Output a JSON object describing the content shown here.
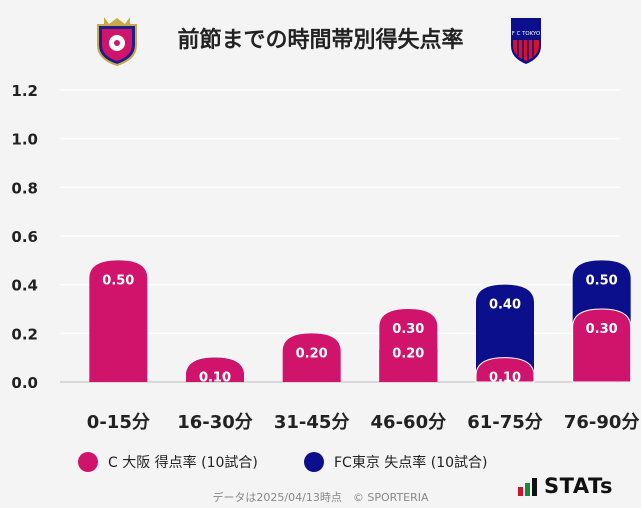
{
  "title": "前節までの時間帯別得失点率",
  "chart_data": {
    "type": "bar",
    "categories": [
      "0-15分",
      "16-30分",
      "31-45分",
      "46-60分",
      "61-75分",
      "76-90分"
    ],
    "series": [
      {
        "name": "C大阪 得点率 (10試合)",
        "values": [
          0.5,
          0.1,
          0.2,
          0.3,
          0.1,
          0.3
        ],
        "labels": [
          "0.50",
          "0.10",
          "0.20",
          "0.30",
          "0.10",
          "0.30"
        ],
        "color": "#d1146b"
      },
      {
        "name": "FC東京 失点率 (10試合)",
        "values": [
          0.0,
          0.1,
          0.0,
          0.2,
          0.4,
          0.5
        ],
        "labels": [
          "",
          "0.10",
          "",
          "0.20",
          "0.40",
          "0.50"
        ],
        "color": "#0c0f8c"
      }
    ],
    "yticks": [
      "0.0",
      "0.2",
      "0.4",
      "0.6",
      "0.8",
      "1.0",
      "1.2"
    ],
    "ylim": [
      0,
      1.2
    ],
    "grid": true,
    "legend": "bottom"
  },
  "legend": {
    "cerezo": "C 大阪 得点率 (10試合)",
    "fctokyo": "FC東京 失点率 (10試合)"
  },
  "footer": "データは2025/04/13時点　© SPORTERIA",
  "brand": "STATs",
  "crest_fctokyo_text": "F C TOKYO"
}
